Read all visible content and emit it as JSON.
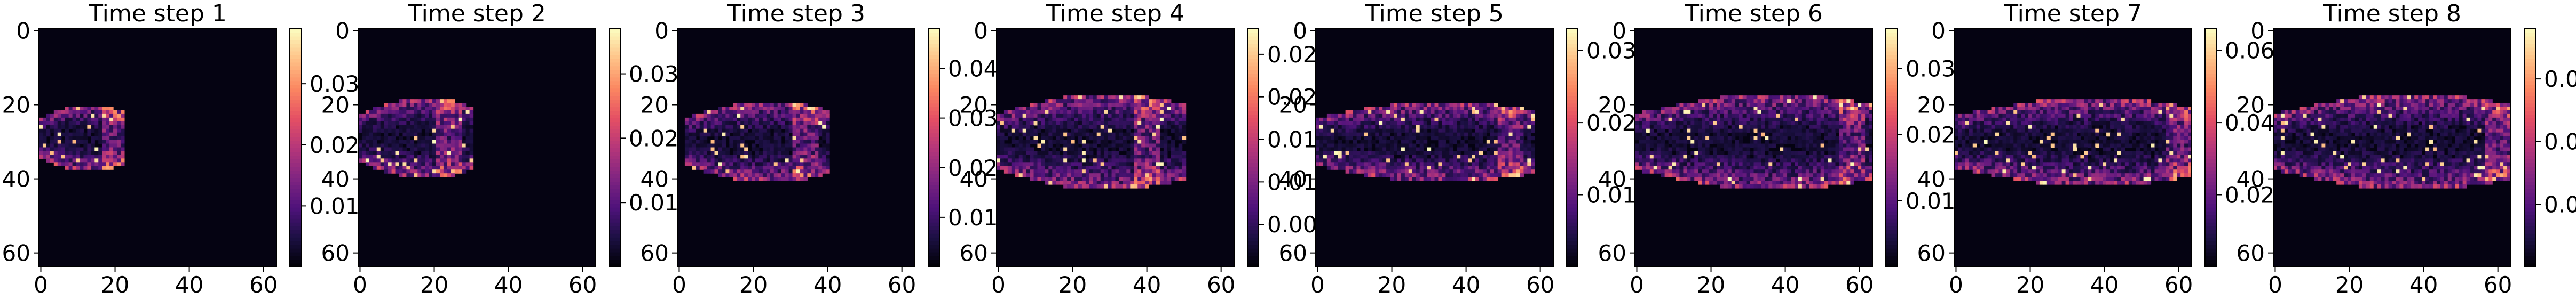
{
  "chart_data": [
    {
      "type": "heatmap",
      "title": "Time step 1",
      "xticks": [
        0,
        20,
        40,
        60
      ],
      "yticks": [
        0,
        20,
        40,
        60
      ],
      "xlim": [
        0,
        63
      ],
      "ylim": [
        63,
        0
      ],
      "colorbar": {
        "vmax": 0.039,
        "ticks": [
          0.01,
          0.02,
          0.03
        ]
      },
      "colormap": "magma",
      "plume": {
        "x0": 0,
        "x1": 22,
        "y_center": 29,
        "y_half": 8,
        "peak_x": 20
      }
    },
    {
      "type": "heatmap",
      "title": "Time step 2",
      "xticks": [
        0,
        20,
        40,
        60
      ],
      "yticks": [
        0,
        20,
        40,
        60
      ],
      "xlim": [
        0,
        63
      ],
      "ylim": [
        63,
        0
      ],
      "colorbar": {
        "vmax": 0.037,
        "ticks": [
          0.01,
          0.02,
          0.03
        ]
      },
      "colormap": "magma",
      "plume": {
        "x0": 0,
        "x1": 30,
        "y_center": 29,
        "y_half": 10,
        "peak_x": 24
      }
    },
    {
      "type": "heatmap",
      "title": "Time step 3",
      "xticks": [
        0,
        20,
        40,
        60
      ],
      "yticks": [
        0,
        20,
        40,
        60
      ],
      "xlim": [
        0,
        63
      ],
      "ylim": [
        63,
        0
      ],
      "colorbar": {
        "vmax": 0.048,
        "ticks": [
          0.01,
          0.02,
          0.03,
          0.04
        ]
      },
      "colormap": "magma",
      "plume": {
        "x0": 2,
        "x1": 40,
        "y_center": 30,
        "y_half": 10,
        "peak_x": 34
      }
    },
    {
      "type": "heatmap",
      "title": "Time step 4",
      "xticks": [
        0,
        20,
        40,
        60
      ],
      "yticks": [
        0,
        20,
        40,
        60
      ],
      "xlim": [
        0,
        63
      ],
      "ylim": [
        63,
        0
      ],
      "colorbar": {
        "vmax": 0.028,
        "ticks": [
          0.005,
          0.01,
          0.015,
          0.02,
          0.025
        ]
      },
      "colormap": "magma",
      "plume": {
        "x0": 0,
        "x1": 50,
        "y_center": 30,
        "y_half": 12,
        "peak_x": 40
      }
    },
    {
      "type": "heatmap",
      "title": "Time step 5",
      "xticks": [
        0,
        20,
        40,
        60
      ],
      "yticks": [
        0,
        20,
        40,
        60
      ],
      "xlim": [
        0,
        63
      ],
      "ylim": [
        63,
        0
      ],
      "colorbar": {
        "vmax": 0.033,
        "ticks": [
          0.01,
          0.02,
          0.03
        ]
      },
      "colormap": "magma",
      "plume": {
        "x0": 0,
        "x1": 58,
        "y_center": 30,
        "y_half": 10,
        "peak_x": 52
      }
    },
    {
      "type": "heatmap",
      "title": "Time step 6",
      "xticks": [
        0,
        20,
        40,
        60
      ],
      "yticks": [
        0,
        20,
        40,
        60
      ],
      "xlim": [
        0,
        63
      ],
      "ylim": [
        63,
        0
      ],
      "colorbar": {
        "vmax": 0.036,
        "ticks": [
          0.01,
          0.02,
          0.03
        ]
      },
      "colormap": "magma",
      "plume": {
        "x0": 0,
        "x1": 63,
        "y_center": 30,
        "y_half": 12,
        "peak_x": 58
      }
    },
    {
      "type": "heatmap",
      "title": "Time step 7",
      "xticks": [
        0,
        20,
        40,
        60
      ],
      "yticks": [
        0,
        20,
        40,
        60
      ],
      "xlim": [
        0,
        63
      ],
      "ylim": [
        63,
        0
      ],
      "colorbar": {
        "vmax": 0.066,
        "ticks": [
          0.02,
          0.04,
          0.06
        ]
      },
      "colormap": "magma",
      "plume": {
        "x0": 0,
        "x1": 63,
        "y_center": 30,
        "y_half": 11,
        "peak_x": 60
      }
    },
    {
      "type": "heatmap",
      "title": "Time step 8",
      "xticks": [
        0,
        20,
        40,
        60
      ],
      "yticks": [
        0,
        20,
        40,
        60
      ],
      "xlim": [
        0,
        63
      ],
      "ylim": [
        63,
        0
      ],
      "colorbar": {
        "vmax": 0.038,
        "ticks": [
          0.01,
          0.02,
          0.03
        ]
      },
      "colormap": "magma",
      "plume": {
        "x0": 0,
        "x1": 63,
        "y_center": 30,
        "y_half": 12,
        "peak_x": 60
      }
    }
  ]
}
